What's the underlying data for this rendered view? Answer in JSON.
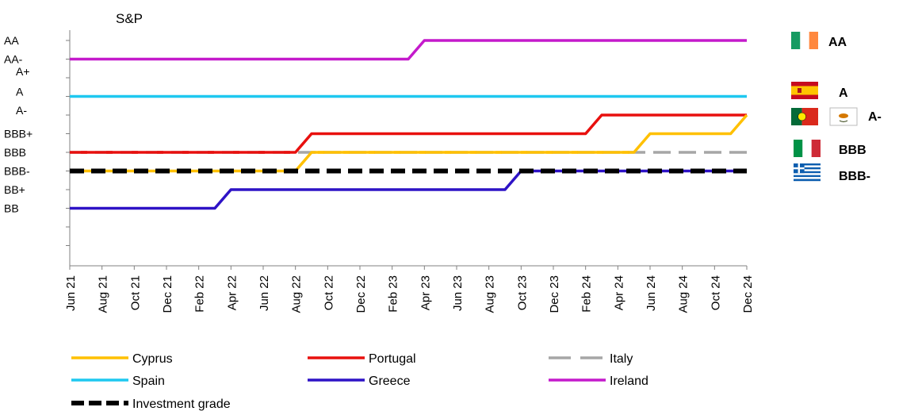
{
  "chart_data": {
    "type": "line",
    "title": "S&P",
    "xlabel": "",
    "ylabel": "",
    "x_ticks": [
      "Jun 21",
      "Aug 21",
      "Oct 21",
      "Dec 21",
      "Feb 22",
      "Apr 22",
      "Jun 22",
      "Aug 22",
      "Oct 22",
      "Dec 22",
      "Feb 23",
      "Apr 23",
      "Jun 23",
      "Aug 23",
      "Oct 23",
      "Dec 23",
      "Feb 24",
      "Apr 24",
      "Jun 24",
      "Aug 24",
      "Oct 24",
      "Dec 24"
    ],
    "y_ticks": [
      "AA",
      "AA-",
      "A+",
      "A",
      "A-",
      "BBB+",
      "BBB",
      "BBB-",
      "BB+",
      "BB"
    ],
    "grid": false,
    "legend_position": "bottom",
    "series": [
      {
        "name": "Cyprus",
        "color": "#FFC000",
        "style": "solid",
        "points": [
          [
            "Jun 21",
            "BBB-"
          ],
          [
            "Aug 22",
            "BBB-"
          ],
          [
            "Sep 22",
            "BBB"
          ],
          [
            "May 24",
            "BBB"
          ],
          [
            "Jun 24",
            "BBB+"
          ],
          [
            "Nov 24",
            "BBB+"
          ],
          [
            "Dec 24",
            "A-"
          ]
        ]
      },
      {
        "name": "Portugal",
        "color": "#E8100E",
        "style": "solid",
        "points": [
          [
            "Jun 21",
            "BBB"
          ],
          [
            "Aug 22",
            "BBB"
          ],
          [
            "Sep 22",
            "BBB+"
          ],
          [
            "Feb 24",
            "BBB+"
          ],
          [
            "Mar 24",
            "A-"
          ],
          [
            "Dec 24",
            "A-"
          ]
        ]
      },
      {
        "name": "Italy",
        "color": "#A6A6A6",
        "style": "dashed",
        "points": [
          [
            "Jun 21",
            "BBB"
          ],
          [
            "Dec 24",
            "BBB"
          ]
        ]
      },
      {
        "name": "Spain",
        "color": "#1EC8F0",
        "style": "solid",
        "points": [
          [
            "Jun 21",
            "A"
          ],
          [
            "Dec 24",
            "A"
          ]
        ]
      },
      {
        "name": "Greece",
        "color": "#2E13C6",
        "style": "solid",
        "points": [
          [
            "Jun 21",
            "BB"
          ],
          [
            "Mar 22",
            "BB"
          ],
          [
            "Apr 22",
            "BB+"
          ],
          [
            "Sep 23",
            "BB+"
          ],
          [
            "Oct 23",
            "BBB-"
          ],
          [
            "Dec 24",
            "BBB-"
          ]
        ]
      },
      {
        "name": "Ireland",
        "color": "#C41ACB",
        "style": "solid",
        "points": [
          [
            "Jun 21",
            "AA-"
          ],
          [
            "Mar 23",
            "AA-"
          ],
          [
            "Apr 23",
            "AA"
          ],
          [
            "Dec 24",
            "AA"
          ]
        ]
      },
      {
        "name": "Investment grade",
        "color": "#000000",
        "style": "thick-dashed",
        "points": [
          [
            "Jun 21",
            "BBB-"
          ],
          [
            "Dec 24",
            "BBB-"
          ]
        ]
      }
    ],
    "flag_labels": [
      {
        "label": "AA",
        "rating": "AA",
        "flags": [
          "ireland-flag"
        ]
      },
      {
        "label": "A",
        "rating": "A",
        "flags": [
          "spain-flag"
        ]
      },
      {
        "label": "A-",
        "rating": "A-",
        "flags": [
          "portugal-flag",
          "cyprus-flag"
        ]
      },
      {
        "label": "BBB",
        "rating": "BBB",
        "flags": [
          "italy-flag"
        ]
      },
      {
        "label": "BBB-",
        "rating": "BBB-",
        "flags": [
          "greece-flag"
        ]
      }
    ]
  }
}
